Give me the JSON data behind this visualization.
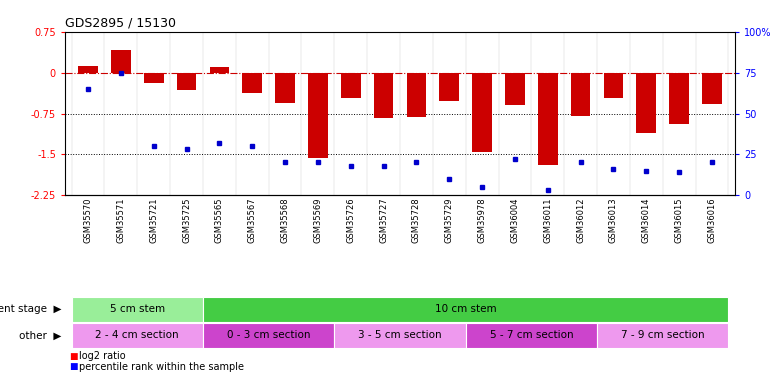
{
  "title": "GDS2895 / 15130",
  "samples": [
    "GSM35570",
    "GSM35571",
    "GSM35721",
    "GSM35725",
    "GSM35565",
    "GSM35567",
    "GSM35568",
    "GSM35569",
    "GSM35726",
    "GSM35727",
    "GSM35728",
    "GSM35729",
    "GSM35978",
    "GSM36004",
    "GSM36011",
    "GSM36012",
    "GSM36013",
    "GSM36014",
    "GSM36015",
    "GSM36016"
  ],
  "log2_ratio": [
    0.12,
    0.42,
    -0.18,
    -0.32,
    0.1,
    -0.38,
    -0.56,
    -1.57,
    -0.47,
    -0.83,
    -0.82,
    -0.52,
    -1.45,
    -0.6,
    -1.7,
    -0.8,
    -0.46,
    -1.1,
    -0.95,
    -0.58
  ],
  "percentile": [
    65,
    75,
    30,
    28,
    32,
    30,
    20,
    20,
    18,
    18,
    20,
    10,
    5,
    22,
    3,
    20,
    16,
    15,
    14,
    20
  ],
  "bar_color": "#cc0000",
  "dot_color": "#0000cc",
  "hline_color": "#cc0000",
  "dotline1": -0.75,
  "dotline2": -1.5,
  "ylim_left": [
    -2.25,
    0.75
  ],
  "ylim_right": [
    0,
    100
  ],
  "yticks_left": [
    0.75,
    0.0,
    -0.75,
    -1.5,
    -2.25
  ],
  "yticks_right": [
    100,
    75,
    50,
    25,
    0
  ],
  "dev_stage_groups": [
    {
      "label": "5 cm stem",
      "start": 0,
      "end": 4,
      "color": "#99ee99"
    },
    {
      "label": "10 cm stem",
      "start": 4,
      "end": 20,
      "color": "#44cc44"
    }
  ],
  "other_groups": [
    {
      "label": "2 - 4 cm section",
      "start": 0,
      "end": 4,
      "color": "#ee99ee"
    },
    {
      "label": "0 - 3 cm section",
      "start": 4,
      "end": 8,
      "color": "#cc44cc"
    },
    {
      "label": "3 - 5 cm section",
      "start": 8,
      "end": 12,
      "color": "#ee99ee"
    },
    {
      "label": "5 - 7 cm section",
      "start": 12,
      "end": 16,
      "color": "#cc44cc"
    },
    {
      "label": "7 - 9 cm section",
      "start": 16,
      "end": 20,
      "color": "#ee99ee"
    }
  ],
  "row_label_dev": "development stage",
  "row_label_other": "other",
  "legend_log2": "log2 ratio",
  "legend_pct": "percentile rank within the sample",
  "background_color": "#ffffff"
}
